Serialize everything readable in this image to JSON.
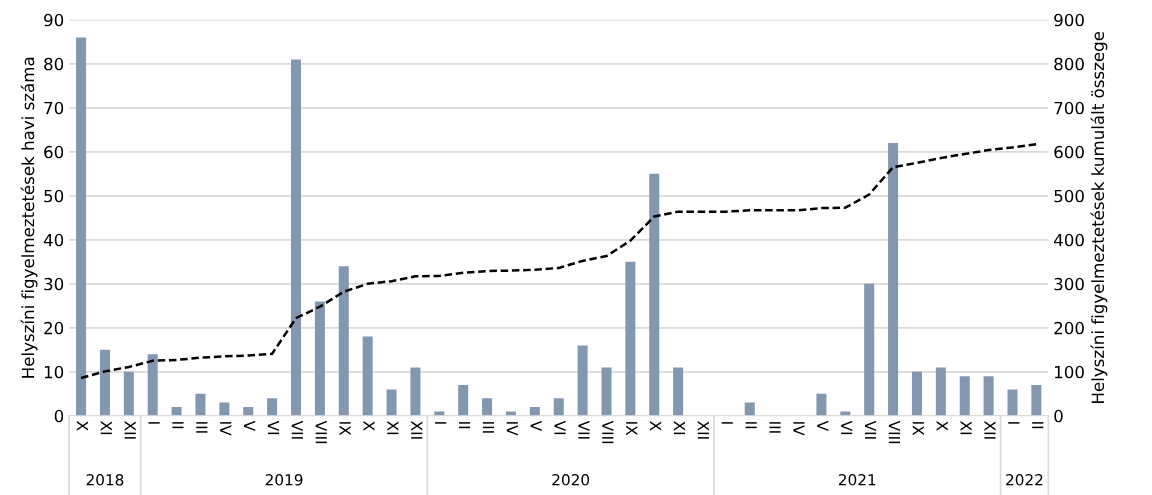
{
  "chart_data": {
    "type": "bar",
    "ylabel": "Helyszíni figyelmeztetések havi száma",
    "y2label": "Helyszíni figyelmeztetések kumulált összege",
    "categories": [
      "X",
      "XI",
      "XII",
      "I",
      "II",
      "III",
      "IV",
      "V",
      "VI",
      "VII",
      "VIII",
      "IX",
      "X",
      "XI",
      "XII",
      "I",
      "II",
      "III",
      "IV",
      "V",
      "VI",
      "VII",
      "VIII",
      "IX",
      "X",
      "XI",
      "XII",
      "I",
      "II",
      "III",
      "IV",
      "V",
      "VI",
      "VII",
      "VIII",
      "IX",
      "X",
      "XI",
      "XII",
      "I",
      "II"
    ],
    "series": [
      {
        "color": "#8497b0",
        "values": [
          86,
          15,
          10,
          14,
          2,
          5,
          3,
          2,
          4,
          81,
          26,
          34,
          18,
          6,
          11,
          1,
          7,
          4,
          1,
          2,
          4,
          16,
          11,
          35,
          55,
          11,
          0,
          0,
          3,
          0,
          0,
          5,
          1,
          30,
          62,
          10,
          11,
          9,
          9,
          6,
          7
        ]
      },
      {
        "type": "line",
        "axis": "y2",
        "color": "#000000",
        "line_style": "dashed",
        "marker": "none",
        "values": [
          86,
          101,
          111,
          125,
          127,
          132,
          135,
          137,
          141,
          222,
          248,
          282,
          300,
          306,
          317,
          318,
          325,
          329,
          330,
          332,
          336,
          352,
          363,
          398,
          453,
          464,
          464,
          464,
          467,
          467,
          467,
          472,
          473,
          503,
          565,
          575,
          586,
          595,
          604,
          610,
          617
        ]
      }
    ],
    "ylim": [
      0,
      90
    ],
    "yticks": [
      0,
      10,
      20,
      30,
      40,
      50,
      60,
      70,
      80,
      90
    ],
    "y2lim": [
      0,
      900
    ],
    "y2ticks": [
      0,
      100,
      200,
      300,
      400,
      500,
      600,
      700,
      800,
      900
    ],
    "grid": "y",
    "legend": false,
    "annotations": [
      "2018",
      "2019",
      "2020",
      "2021",
      "2022"
    ]
  }
}
